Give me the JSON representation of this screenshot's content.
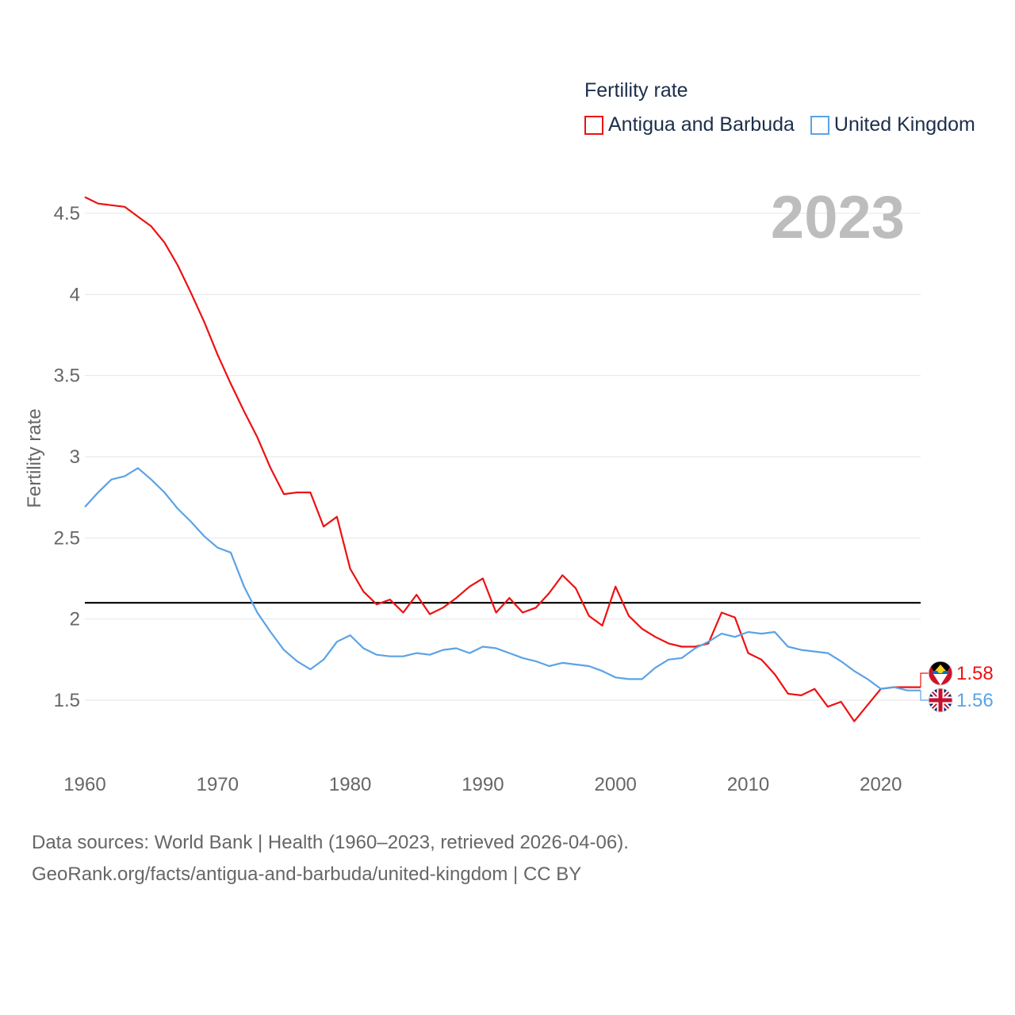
{
  "legend": {
    "title": "Fertility rate",
    "items": [
      {
        "label": "Antigua and Barbuda",
        "color": "#ee1111"
      },
      {
        "label": "United Kingdom",
        "color": "#5ba3e6"
      }
    ]
  },
  "footer": {
    "line1": "Data sources: World Bank | Health (1960–2023, retrieved 2026-04-06).",
    "line2": "GeoRank.org/facts/antigua-and-barbuda/united-kingdom | CC BY"
  },
  "chart_data": {
    "type": "line",
    "title": "Fertility rate",
    "year_label": "2023",
    "xlabel": "",
    "ylabel": "Fertility rate",
    "xlim": [
      1960,
      2023
    ],
    "ylim": [
      1.2,
      4.6
    ],
    "x_ticks": [
      1960,
      1970,
      1980,
      1990,
      2000,
      2010,
      2020
    ],
    "y_ticks": [
      {
        "value": 1.5,
        "label": "1.5"
      },
      {
        "value": 2,
        "label": "2"
      },
      {
        "value": 2.5,
        "label": "2.5"
      },
      {
        "value": 3,
        "label": "3"
      },
      {
        "value": 3.5,
        "label": "3.5"
      },
      {
        "value": 4,
        "label": "4"
      },
      {
        "value": 4.5,
        "label": "4.5"
      }
    ],
    "reference_line": {
      "value": 2.1,
      "color": "#000000"
    },
    "x": [
      1960,
      1961,
      1962,
      1963,
      1964,
      1965,
      1966,
      1967,
      1968,
      1969,
      1970,
      1971,
      1972,
      1973,
      1974,
      1975,
      1976,
      1977,
      1978,
      1979,
      1980,
      1981,
      1982,
      1983,
      1984,
      1985,
      1986,
      1987,
      1988,
      1989,
      1990,
      1991,
      1992,
      1993,
      1994,
      1995,
      1996,
      1997,
      1998,
      1999,
      2000,
      2001,
      2002,
      2003,
      2004,
      2005,
      2006,
      2007,
      2008,
      2009,
      2010,
      2011,
      2012,
      2013,
      2014,
      2015,
      2016,
      2017,
      2018,
      2019,
      2020,
      2021,
      2022,
      2023
    ],
    "series": [
      {
        "name": "Antigua and Barbuda",
        "color": "#ee1111",
        "end_label": "1.58",
        "values": [
          4.6,
          4.56,
          4.55,
          4.54,
          4.48,
          4.42,
          4.32,
          4.18,
          4.01,
          3.83,
          3.63,
          3.45,
          3.28,
          3.12,
          2.93,
          2.77,
          2.78,
          2.78,
          2.57,
          2.63,
          2.31,
          2.17,
          2.09,
          2.12,
          2.04,
          2.15,
          2.03,
          2.07,
          2.13,
          2.2,
          2.25,
          2.04,
          2.13,
          2.04,
          2.07,
          2.16,
          2.27,
          2.19,
          2.02,
          1.96,
          2.2,
          2.02,
          1.94,
          1.89,
          1.85,
          1.83,
          1.83,
          1.85,
          2.04,
          2.01,
          1.79,
          1.75,
          1.66,
          1.54,
          1.53,
          1.57,
          1.46,
          1.49,
          1.37,
          1.47,
          1.57,
          1.58,
          1.58,
          1.58
        ]
      },
      {
        "name": "United Kingdom",
        "color": "#5ba3e6",
        "end_label": "1.56",
        "values": [
          2.69,
          2.78,
          2.86,
          2.88,
          2.93,
          2.86,
          2.78,
          2.68,
          2.6,
          2.51,
          2.44,
          2.41,
          2.2,
          2.04,
          1.92,
          1.81,
          1.74,
          1.69,
          1.75,
          1.86,
          1.9,
          1.82,
          1.78,
          1.77,
          1.77,
          1.79,
          1.78,
          1.81,
          1.82,
          1.79,
          1.83,
          1.82,
          1.79,
          1.76,
          1.74,
          1.71,
          1.73,
          1.72,
          1.71,
          1.68,
          1.64,
          1.63,
          1.63,
          1.7,
          1.75,
          1.76,
          1.82,
          1.86,
          1.91,
          1.89,
          1.92,
          1.91,
          1.92,
          1.83,
          1.81,
          1.8,
          1.79,
          1.74,
          1.68,
          1.63,
          1.57,
          1.58,
          1.56,
          1.56
        ]
      }
    ]
  }
}
